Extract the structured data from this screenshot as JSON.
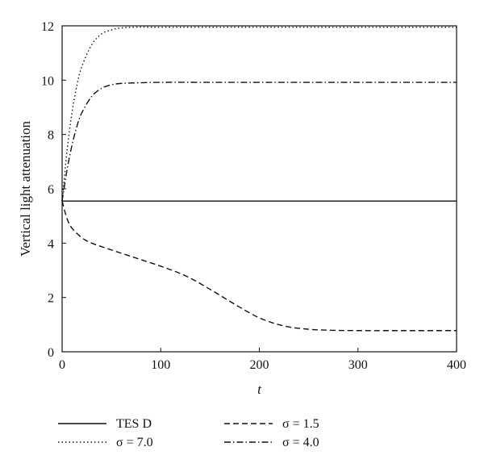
{
  "chart_data": {
    "type": "line",
    "title": "",
    "xlabel": "t",
    "ylabel": "Vertical light attenuation",
    "xlim": [
      0,
      400
    ],
    "ylim": [
      0,
      12
    ],
    "x_ticks": [
      "0",
      "100",
      "200",
      "300",
      "400"
    ],
    "y_ticks": [
      "0",
      "2",
      "4",
      "6",
      "8",
      "10",
      "12"
    ],
    "grid": false,
    "legend_position": "bottom",
    "series": [
      {
        "name": "TES D",
        "style": "solid",
        "x": [
          0,
          400
        ],
        "y": [
          5.55,
          5.55
        ]
      },
      {
        "name": "σ = 1.5",
        "style": "dashed",
        "x": [
          0,
          5,
          10,
          20,
          30,
          50,
          75,
          100,
          125,
          150,
          175,
          200,
          225,
          250,
          275,
          300,
          350,
          400
        ],
        "y": [
          5.55,
          4.9,
          4.55,
          4.2,
          4.0,
          3.75,
          3.45,
          3.15,
          2.8,
          2.3,
          1.75,
          1.25,
          0.95,
          0.83,
          0.79,
          0.78,
          0.78,
          0.78
        ]
      },
      {
        "name": "σ = 7.0",
        "style": "dotted",
        "x": [
          0,
          5,
          10,
          15,
          20,
          30,
          40,
          50,
          60,
          75,
          100,
          150,
          200,
          300,
          400
        ],
        "y": [
          5.55,
          7.4,
          8.8,
          9.8,
          10.5,
          11.3,
          11.7,
          11.85,
          11.92,
          11.95,
          11.95,
          11.95,
          11.95,
          11.95,
          11.95
        ]
      },
      {
        "name": "σ = 4.0",
        "style": "dashdot",
        "x": [
          0,
          5,
          10,
          15,
          20,
          30,
          40,
          50,
          60,
          75,
          100,
          150,
          200,
          300,
          400
        ],
        "y": [
          5.55,
          6.7,
          7.6,
          8.3,
          8.8,
          9.4,
          9.7,
          9.83,
          9.88,
          9.9,
          9.92,
          9.92,
          9.92,
          9.92,
          9.92
        ]
      }
    ]
  }
}
